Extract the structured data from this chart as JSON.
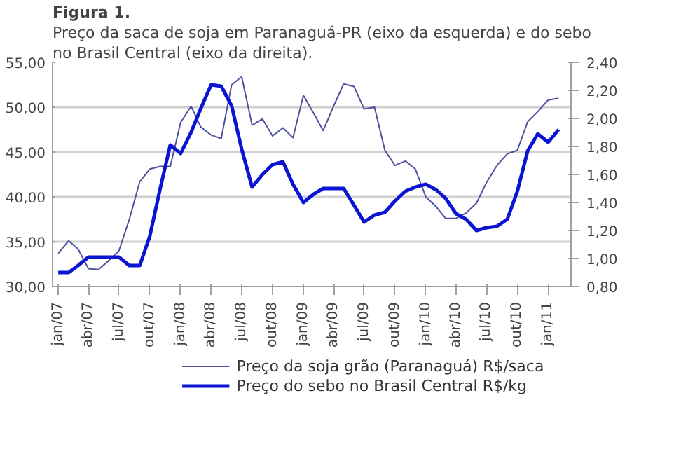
{
  "chart_data": {
    "type": "line",
    "title": "Figura 1.",
    "subtitle": "Preço da saca de soja em Paranaguá-PR (eixo da esquerda) e do sebo no Brasil Central (eixo da direita).",
    "x": [
      "2007-01",
      "2007-02",
      "2007-03",
      "2007-04",
      "2007-05",
      "2007-06",
      "2007-07",
      "2007-08",
      "2007-09",
      "2007-10",
      "2007-11",
      "2007-12",
      "2008-01",
      "2008-02",
      "2008-03",
      "2008-04",
      "2008-05",
      "2008-06",
      "2008-07",
      "2008-08",
      "2008-09",
      "2008-10",
      "2008-11",
      "2008-12",
      "2009-01",
      "2009-02",
      "2009-03",
      "2009-04",
      "2009-05",
      "2009-06",
      "2009-07",
      "2009-08",
      "2009-09",
      "2009-10",
      "2009-11",
      "2009-12",
      "2010-01",
      "2010-02",
      "2010-03",
      "2010-04",
      "2010-05",
      "2010-06",
      "2010-07",
      "2010-08",
      "2010-09",
      "2010-10",
      "2010-11",
      "2010-12",
      "2011-01",
      "2011-02"
    ],
    "series": [
      {
        "name": "Preço da soja grão (Paranaguá) R$/saca",
        "color": "#5050a0",
        "values": [
          33.7,
          35.1,
          34.2,
          32.0,
          31.9,
          32.9,
          34.0,
          37.5,
          41.7,
          43.1,
          43.4,
          43.4,
          48.3,
          50.1,
          47.8,
          46.9,
          46.5,
          52.5,
          53.4,
          48.0,
          48.7,
          46.8,
          47.7,
          46.6,
          51.3,
          49.3,
          47.4,
          50.1,
          52.6,
          52.3,
          49.8,
          50.0,
          45.2,
          43.5,
          44.0,
          43.1,
          40.0,
          38.9,
          37.6,
          37.6,
          38.2,
          39.3,
          41.6,
          43.5,
          44.8,
          45.2,
          48.4,
          49.5,
          50.8,
          51.0
        ]
      },
      {
        "name": "Preço do sebo no Brasil Central R$/kg",
        "color": "#0a14d2",
        "axis": "y2",
        "values": [
          0.9,
          0.9,
          0.95,
          1.01,
          1.01,
          1.01,
          1.01,
          0.95,
          0.95,
          1.16,
          1.5,
          1.81,
          1.75,
          1.9,
          2.07,
          2.24,
          2.23,
          2.09,
          1.78,
          1.51,
          1.6,
          1.67,
          1.69,
          1.53,
          1.4,
          1.46,
          1.5,
          1.5,
          1.5,
          1.38,
          1.26,
          1.31,
          1.33,
          1.41,
          1.48,
          1.51,
          1.53,
          1.49,
          1.43,
          1.32,
          1.28,
          1.2,
          1.22,
          1.23,
          1.28,
          1.48,
          1.77,
          1.89,
          1.83,
          1.92
        ]
      }
    ],
    "xlim": [
      "2006-12-15",
      "2011-03-10"
    ],
    "xticks": [
      {
        "value": "2007-01",
        "label": "jan/07"
      },
      {
        "value": "2007-04",
        "label": "abr/07"
      },
      {
        "value": "2007-07",
        "label": "jul/07"
      },
      {
        "value": "2007-10",
        "label": "out/07"
      },
      {
        "value": "2008-01",
        "label": "jan/08"
      },
      {
        "value": "2008-04",
        "label": "abr/08"
      },
      {
        "value": "2008-07",
        "label": "jul/08"
      },
      {
        "value": "2008-10",
        "label": "out/08"
      },
      {
        "value": "2009-01",
        "label": "jan/09"
      },
      {
        "value": "2009-04",
        "label": "abr/09"
      },
      {
        "value": "2009-07",
        "label": "jul/09"
      },
      {
        "value": "2009-10",
        "label": "out/09"
      },
      {
        "value": "2010-01",
        "label": "jan/10"
      },
      {
        "value": "2010-04",
        "label": "abr/10"
      },
      {
        "value": "2010-07",
        "label": "jul/10"
      },
      {
        "value": "2010-10",
        "label": "out/10"
      },
      {
        "value": "2011-01",
        "label": "jan/11"
      }
    ],
    "ylim": [
      30,
      55
    ],
    "yticks": [
      {
        "value": 30,
        "label": "30,00"
      },
      {
        "value": 35,
        "label": "35,00"
      },
      {
        "value": 40,
        "label": "40,00"
      },
      {
        "value": 45,
        "label": "45,00"
      },
      {
        "value": 50,
        "label": "50,00"
      },
      {
        "value": 55,
        "label": "55,00"
      }
    ],
    "y2lim": [
      0.8,
      2.4
    ],
    "y2ticks": [
      {
        "value": 0.8,
        "label": "0,80"
      },
      {
        "value": 1.0,
        "label": "1,00"
      },
      {
        "value": 1.2,
        "label": "1,20"
      },
      {
        "value": 1.4,
        "label": "1,40"
      },
      {
        "value": 1.6,
        "label": "1,60"
      },
      {
        "value": 1.8,
        "label": "1,80"
      },
      {
        "value": 2.0,
        "label": "2,00"
      },
      {
        "value": 2.2,
        "label": "2,20"
      },
      {
        "value": 2.4,
        "label": "2,40"
      }
    ],
    "grid": "y",
    "legend": "bottom",
    "marker": "none",
    "line_style": "solid"
  }
}
